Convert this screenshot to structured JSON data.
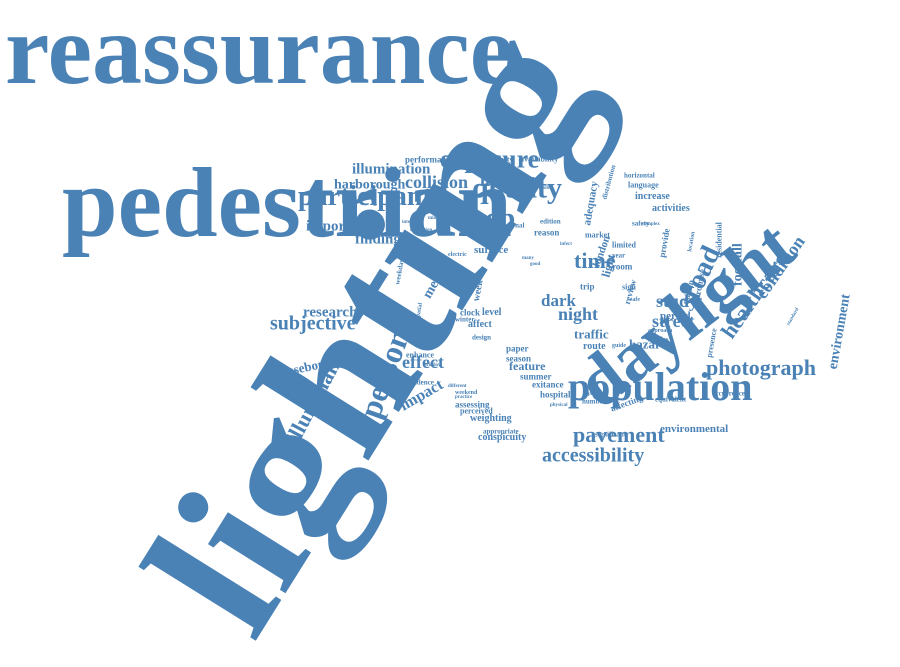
{
  "word_color": "#4a82b6",
  "background": "#ffffff",
  "words": [
    {
      "text": "lighting",
      "rank": "primary",
      "orientation": "diagonal"
    },
    {
      "text": "reassurance",
      "rank": "primary",
      "orientation": "horizontal"
    },
    {
      "text": "pedestrian",
      "rank": "primary",
      "orientation": "horizontal"
    },
    {
      "text": "daylight",
      "rank": "major",
      "orientation": "diagonal"
    },
    {
      "text": "population",
      "rank": "major",
      "orientation": "horizontal"
    },
    {
      "text": "participant",
      "rank": "medium",
      "orientation": "horizontal"
    },
    {
      "text": "exposure",
      "rank": "medium",
      "orientation": "horizontal"
    },
    {
      "text": "quality",
      "rank": "medium",
      "orientation": "horizontal"
    },
    {
      "text": "sleep",
      "rank": "medium",
      "orientation": "horizontal"
    },
    {
      "text": "person",
      "rank": "medium",
      "orientation": "diagonal"
    },
    {
      "text": "photograph",
      "rank": "medium",
      "orientation": "horizontal"
    },
    {
      "text": "pavement",
      "rank": "medium",
      "orientation": "horizontal"
    },
    {
      "text": "accessibility",
      "rank": "medium",
      "orientation": "horizontal"
    },
    {
      "text": "healthcare",
      "rank": "medium",
      "orientation": "diagonal"
    },
    {
      "text": "road",
      "rank": "medium",
      "orientation": "diagonal"
    },
    {
      "text": "illuminance",
      "rank": "medium",
      "orientation": "diagonal"
    },
    {
      "text": "subjective",
      "rank": "medium",
      "orientation": "horizontal"
    },
    {
      "text": "collision",
      "rank": "small",
      "orientation": "horizontal"
    },
    {
      "text": "illumination",
      "rank": "small",
      "orientation": "horizontal"
    },
    {
      "text": "harborough",
      "rank": "small",
      "orientation": "horizontal"
    },
    {
      "text": "health",
      "rank": "small",
      "orientation": "horizontal"
    },
    {
      "text": "time",
      "rank": "small",
      "orientation": "horizontal"
    },
    {
      "text": "important",
      "rank": "small",
      "orientation": "horizontal"
    },
    {
      "text": "finding",
      "rank": "small",
      "orientation": "horizontal"
    },
    {
      "text": "research",
      "rank": "small",
      "orientation": "horizontal"
    },
    {
      "text": "effect",
      "rank": "small",
      "orientation": "horizontal"
    },
    {
      "text": "impact",
      "rank": "small",
      "orientation": "diagonal"
    },
    {
      "text": "night",
      "rank": "small",
      "orientation": "horizontal"
    },
    {
      "text": "dark",
      "rank": "small",
      "orientation": "horizontal"
    },
    {
      "text": "street",
      "rank": "small",
      "orientation": "horizontal"
    },
    {
      "text": "study",
      "rank": "small",
      "orientation": "horizontal"
    },
    {
      "text": "condition",
      "rank": "small",
      "orientation": "diagonal"
    },
    {
      "text": "footfall",
      "rank": "small",
      "orientation": "vertical"
    },
    {
      "text": "environment",
      "rank": "small",
      "orientation": "vertical"
    },
    {
      "text": "environmental",
      "rank": "small",
      "orientation": "horizontal"
    },
    {
      "text": "housebound",
      "rank": "small",
      "orientation": "diagonal"
    },
    {
      "text": "method",
      "rank": "small",
      "orientation": "diagonal"
    },
    {
      "text": "traffic",
      "rank": "small",
      "orientation": "horizontal"
    },
    {
      "text": "hazard",
      "rank": "small",
      "orientation": "horizontal"
    },
    {
      "text": "period",
      "rank": "small",
      "orientation": "horizontal"
    },
    {
      "text": "feature",
      "rank": "small",
      "orientation": "horizontal"
    },
    {
      "text": "conspicuity",
      "rank": "small",
      "orientation": "horizontal"
    },
    {
      "text": "weighting",
      "rank": "small",
      "orientation": "horizontal"
    },
    {
      "text": "surface",
      "rank": "small",
      "orientation": "horizontal"
    },
    {
      "text": "performance",
      "rank": "tiny",
      "orientation": "horizontal"
    },
    {
      "text": "productivity",
      "rank": "tiny",
      "orientation": "horizontal"
    },
    {
      "text": "availability",
      "rank": "tiny",
      "orientation": "horizontal"
    },
    {
      "text": "increase",
      "rank": "tiny",
      "orientation": "horizontal"
    },
    {
      "text": "activities",
      "rank": "tiny",
      "orientation": "horizontal"
    },
    {
      "text": "language",
      "rank": "tiny",
      "orientation": "horizontal"
    },
    {
      "text": "horizontal",
      "rank": "tiny",
      "orientation": "horizontal"
    },
    {
      "text": "residential",
      "rank": "tiny",
      "orientation": "vertical"
    },
    {
      "text": "adequacy",
      "rank": "tiny",
      "orientation": "vertical"
    },
    {
      "text": "reason",
      "rank": "tiny",
      "orientation": "horizontal"
    },
    {
      "text": "edition",
      "rank": "tiny",
      "orientation": "horizontal"
    },
    {
      "text": "external",
      "rank": "tiny",
      "orientation": "horizontal"
    },
    {
      "text": "market",
      "rank": "tiny",
      "orientation": "horizontal"
    },
    {
      "text": "london",
      "rank": "tiny",
      "orientation": "vertical"
    },
    {
      "text": "light",
      "rank": "tiny",
      "orientation": "vertical"
    },
    {
      "text": "room",
      "rank": "tiny",
      "orientation": "horizontal"
    },
    {
      "text": "year",
      "rank": "tiny",
      "orientation": "horizontal"
    },
    {
      "text": "limited",
      "rank": "tiny",
      "orientation": "horizontal"
    },
    {
      "text": "safety",
      "rank": "tiny",
      "orientation": "horizontal"
    },
    {
      "text": "provide",
      "rank": "tiny",
      "orientation": "vertical"
    },
    {
      "text": "review",
      "rank": "tiny",
      "orientation": "vertical"
    },
    {
      "text": "promise",
      "rank": "tiny",
      "orientation": "vertical"
    },
    {
      "text": "dublin",
      "rank": "tiny",
      "orientation": "vertical"
    },
    {
      "text": "sign",
      "rank": "tiny",
      "orientation": "horizontal"
    },
    {
      "text": "safe",
      "rank": "tiny",
      "orientation": "horizontal"
    },
    {
      "text": "trip",
      "rank": "tiny",
      "orientation": "horizontal"
    },
    {
      "text": "week",
      "rank": "tiny",
      "orientation": "vertical"
    },
    {
      "text": "level",
      "rank": "tiny",
      "orientation": "horizontal"
    },
    {
      "text": "clock",
      "rank": "tiny",
      "orientation": "horizontal"
    },
    {
      "text": "affect",
      "rank": "tiny",
      "orientation": "horizontal"
    },
    {
      "text": "winter",
      "rank": "tiny",
      "orientation": "horizontal"
    },
    {
      "text": "design",
      "rank": "tiny",
      "orientation": "horizontal"
    },
    {
      "text": "paper",
      "rank": "tiny",
      "orientation": "horizontal"
    },
    {
      "text": "season",
      "rank": "tiny",
      "orientation": "horizontal"
    },
    {
      "text": "summer",
      "rank": "tiny",
      "orientation": "horizontal"
    },
    {
      "text": "exitance",
      "rank": "tiny",
      "orientation": "horizontal"
    },
    {
      "text": "hospital",
      "rank": "tiny",
      "orientation": "horizontal"
    },
    {
      "text": "route",
      "rank": "tiny",
      "orientation": "horizontal"
    },
    {
      "text": "guide",
      "rank": "tiny",
      "orientation": "horizontal"
    },
    {
      "text": "enhance",
      "rank": "tiny",
      "orientation": "horizontal"
    },
    {
      "text": "confidence",
      "rank": "tiny",
      "orientation": "horizontal"
    },
    {
      "text": "assessing",
      "rank": "tiny",
      "orientation": "horizontal"
    },
    {
      "text": "perceived",
      "rank": "tiny",
      "orientation": "horizontal"
    },
    {
      "text": "appropriate",
      "rank": "tiny",
      "orientation": "horizontal"
    },
    {
      "text": "number",
      "rank": "tiny",
      "orientation": "horizontal"
    },
    {
      "text": "affecting",
      "rank": "tiny",
      "orientation": "diagonal"
    },
    {
      "text": "significant",
      "rank": "tiny",
      "orientation": "horizontal"
    },
    {
      "text": "equivalent",
      "rank": "tiny",
      "orientation": "horizontal"
    },
    {
      "text": "occurrence",
      "rank": "tiny",
      "orientation": "horizontal"
    },
    {
      "text": "presence",
      "rank": "tiny",
      "orientation": "vertical"
    },
    {
      "text": "studies",
      "rank": "tiny",
      "orientation": "horizontal"
    },
    {
      "text": "approach",
      "rank": "tiny",
      "orientation": "horizontal"
    },
    {
      "text": "change",
      "rank": "tiny",
      "orientation": "vertical"
    },
    {
      "text": "weekday",
      "rank": "tiny",
      "orientation": "vertical"
    },
    {
      "text": "frequency",
      "rank": "tiny",
      "orientation": "horizontal"
    },
    {
      "text": "interview",
      "rank": "tiny",
      "orientation": "horizontal"
    },
    {
      "text": "disruption",
      "rank": "tiny",
      "orientation": "horizontal"
    },
    {
      "text": "electric",
      "rank": "tiny",
      "orientation": "horizontal"
    },
    {
      "text": "minimum",
      "rank": "tiny",
      "orientation": "horizontal"
    },
    {
      "text": "spatial",
      "rank": "tiny",
      "orientation": "vertical"
    },
    {
      "text": "weekend",
      "rank": "tiny",
      "orientation": "horizontal"
    },
    {
      "text": "window",
      "rank": "tiny",
      "orientation": "horizontal"
    },
    {
      "text": "different",
      "rank": "tiny",
      "orientation": "horizontal"
    },
    {
      "text": "practice",
      "rank": "tiny",
      "orientation": "horizontal"
    },
    {
      "text": "physical",
      "rank": "tiny",
      "orientation": "horizontal"
    },
    {
      "text": "present",
      "rank": "tiny",
      "orientation": "horizontal"
    },
    {
      "text": "complex",
      "rank": "tiny",
      "orientation": "horizontal"
    },
    {
      "text": "possible",
      "rank": "tiny",
      "orientation": "horizontal"
    },
    {
      "text": "distribution",
      "rank": "tiny",
      "orientation": "vertical"
    },
    {
      "text": "location",
      "rank": "tiny",
      "orientation": "vertical"
    },
    {
      "text": "standard",
      "rank": "tiny",
      "orientation": "vertical"
    },
    {
      "text": "infect",
      "rank": "tiny",
      "orientation": "horizontal"
    },
    {
      "text": "many",
      "rank": "tiny",
      "orientation": "horizontal"
    },
    {
      "text": "good",
      "rank": "tiny",
      "orientation": "horizontal"
    }
  ]
}
